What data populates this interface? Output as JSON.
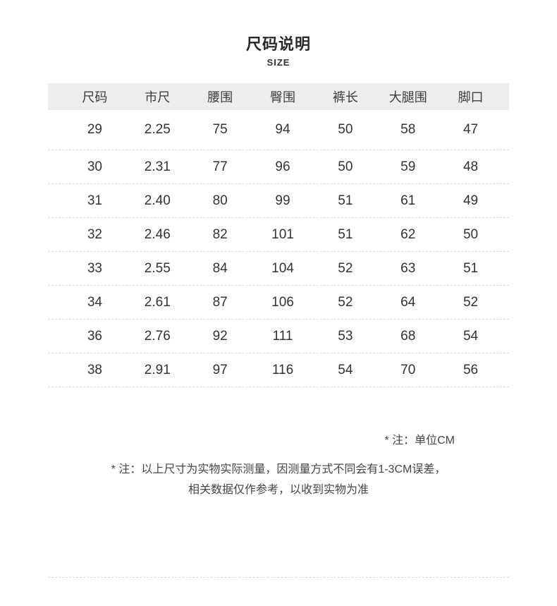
{
  "page": {
    "title": "尺码说明",
    "subtitle": "SIZE"
  },
  "table": {
    "columns": [
      "尺码",
      "市尺",
      "腰围",
      "臀围",
      "裤长",
      "大腿围",
      "脚口"
    ],
    "rows": [
      [
        "29",
        "2.25",
        "75",
        "94",
        "50",
        "58",
        "47"
      ],
      [
        "30",
        "2.31",
        "77",
        "96",
        "50",
        "59",
        "48"
      ],
      [
        "31",
        "2.40",
        "80",
        "99",
        "51",
        "61",
        "49"
      ],
      [
        "32",
        "2.46",
        "82",
        "101",
        "51",
        "62",
        "50"
      ],
      [
        "33",
        "2.55",
        "84",
        "104",
        "52",
        "63",
        "51"
      ],
      [
        "34",
        "2.61",
        "87",
        "106",
        "52",
        "64",
        "52"
      ],
      [
        "36",
        "2.76",
        "92",
        "111",
        "53",
        "68",
        "54"
      ],
      [
        "38",
        "2.91",
        "97",
        "116",
        "54",
        "70",
        "56"
      ]
    ]
  },
  "notes": {
    "unit": "* 注：单位CM",
    "measure_line1": "* 注：以上尺寸为实物实际测量，因测量方式不同会有1-3CM误差，",
    "measure_line2": "相关数据仅作参考，以收到实物为准"
  },
  "colors": {
    "header_bg": "#eeeeee",
    "body_text": "#333333",
    "note_text": "#454545",
    "divider": "#dcdcdc"
  }
}
